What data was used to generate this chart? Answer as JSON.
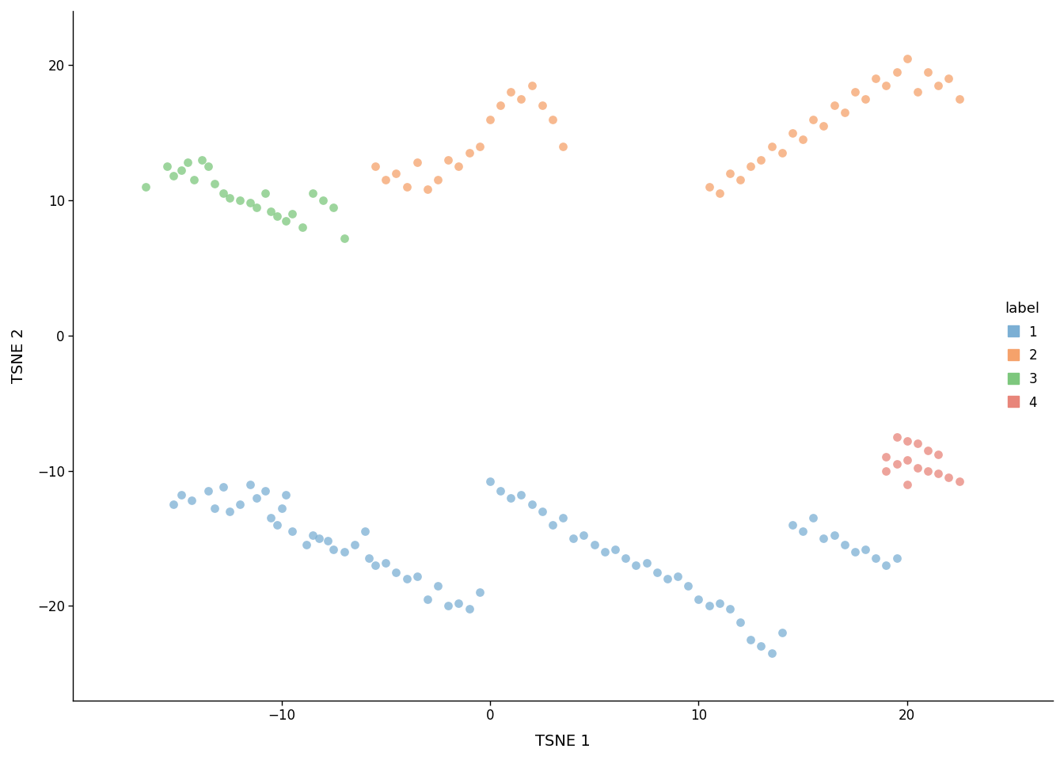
{
  "title": "",
  "xlabel": "TSNE 1",
  "ylabel": "TSNE 2",
  "background_color": "#ffffff",
  "legend_title": "label",
  "clusters": {
    "1": {
      "color": "#7BAFD4",
      "x": [
        -15.2,
        -14.8,
        -14.3,
        -13.5,
        -13.2,
        -12.8,
        -12.5,
        -12.0,
        -11.5,
        -11.2,
        -10.8,
        -10.5,
        -10.2,
        -10.0,
        -9.8,
        -9.5,
        -8.8,
        -8.5,
        -8.2,
        -7.8,
        -7.5,
        -7.0,
        -6.5,
        -6.0,
        -5.8,
        -5.5,
        -5.0,
        -4.5,
        -4.0,
        -3.5,
        -3.0,
        -2.5,
        -2.0,
        -1.5,
        -1.0,
        -0.5,
        0.0,
        0.5,
        1.0,
        1.5,
        2.0,
        2.5,
        3.0,
        3.5,
        4.0,
        4.5,
        5.0,
        5.5,
        6.0,
        6.5,
        7.0,
        7.5,
        8.0,
        8.5,
        9.0,
        9.5,
        10.0,
        10.5,
        11.0,
        11.5,
        12.0,
        12.5,
        13.0,
        13.5,
        14.0,
        14.5,
        15.0,
        15.5,
        16.0,
        16.5,
        17.0,
        17.5,
        18.0,
        18.5,
        19.0,
        19.5
      ],
      "y": [
        -12.5,
        -11.8,
        -12.2,
        -11.5,
        -12.8,
        -11.2,
        -13.0,
        -12.5,
        -11.0,
        -12.0,
        -11.5,
        -13.5,
        -14.0,
        -12.8,
        -11.8,
        -14.5,
        -15.5,
        -14.8,
        -15.0,
        -15.2,
        -15.8,
        -16.0,
        -15.5,
        -14.5,
        -16.5,
        -17.0,
        -16.8,
        -17.5,
        -18.0,
        -17.8,
        -19.5,
        -18.5,
        -20.0,
        -19.8,
        -20.2,
        -19.0,
        -10.8,
        -11.5,
        -12.0,
        -11.8,
        -12.5,
        -13.0,
        -14.0,
        -13.5,
        -15.0,
        -14.8,
        -15.5,
        -16.0,
        -15.8,
        -16.5,
        -17.0,
        -16.8,
        -17.5,
        -18.0,
        -17.8,
        -18.5,
        -19.5,
        -20.0,
        -19.8,
        -20.2,
        -21.2,
        -22.5,
        -23.0,
        -23.5,
        -22.0,
        -14.0,
        -14.5,
        -13.5,
        -15.0,
        -14.8,
        -15.5,
        -16.0,
        -15.8,
        -16.5,
        -17.0,
        -16.5
      ]
    },
    "2": {
      "color": "#F5A26B",
      "x": [
        -5.5,
        -5.0,
        -4.5,
        -4.0,
        -3.5,
        -3.0,
        -2.5,
        -2.0,
        -1.5,
        -1.0,
        -0.5,
        0.0,
        0.5,
        1.0,
        1.5,
        2.0,
        2.5,
        3.0,
        3.5,
        10.5,
        11.0,
        11.5,
        12.0,
        12.5,
        13.0,
        13.5,
        14.0,
        14.5,
        15.0,
        15.5,
        16.0,
        16.5,
        17.0,
        17.5,
        18.0,
        18.5,
        19.0,
        19.5,
        20.0,
        20.5,
        21.0,
        21.5,
        22.0,
        22.5
      ],
      "y": [
        12.5,
        11.5,
        12.0,
        11.0,
        12.8,
        10.8,
        11.5,
        13.0,
        12.5,
        13.5,
        14.0,
        16.0,
        17.0,
        18.0,
        17.5,
        18.5,
        17.0,
        16.0,
        14.0,
        11.0,
        10.5,
        12.0,
        11.5,
        12.5,
        13.0,
        14.0,
        13.5,
        15.0,
        14.5,
        16.0,
        15.5,
        17.0,
        16.5,
        18.0,
        17.5,
        19.0,
        18.5,
        19.5,
        20.5,
        18.0,
        19.5,
        18.5,
        19.0,
        17.5
      ]
    },
    "3": {
      "color": "#7DC77D",
      "x": [
        -16.5,
        -15.5,
        -15.2,
        -14.8,
        -14.5,
        -14.2,
        -13.8,
        -13.5,
        -13.2,
        -12.8,
        -12.5,
        -12.0,
        -11.5,
        -11.2,
        -10.8,
        -10.5,
        -10.2,
        -9.8,
        -9.5,
        -9.0,
        -8.5,
        -8.0,
        -7.5,
        -7.0
      ],
      "y": [
        11.0,
        12.5,
        11.8,
        12.2,
        12.8,
        11.5,
        13.0,
        12.5,
        11.2,
        10.5,
        10.2,
        10.0,
        9.8,
        9.5,
        10.5,
        9.2,
        8.8,
        8.5,
        9.0,
        8.0,
        10.5,
        10.0,
        9.5,
        7.2
      ]
    },
    "4": {
      "color": "#E8857A",
      "x": [
        19.5,
        20.0,
        20.5,
        21.0,
        21.5,
        19.0,
        19.5,
        20.0,
        20.5,
        21.0,
        21.5,
        22.0,
        22.5,
        19.0,
        20.0
      ],
      "y": [
        -7.5,
        -7.8,
        -8.0,
        -8.5,
        -8.8,
        -9.0,
        -9.5,
        -9.2,
        -9.8,
        -10.0,
        -10.2,
        -10.5,
        -10.8,
        -10.0,
        -11.0
      ]
    }
  },
  "xlim": [
    -20,
    27
  ],
  "ylim": [
    -27,
    24
  ],
  "xticks": [
    -10,
    0,
    10,
    20
  ],
  "yticks": [
    -20,
    -10,
    0,
    10,
    20
  ],
  "point_size": 60,
  "point_alpha": 0.75,
  "font_family": "DejaVu Sans"
}
